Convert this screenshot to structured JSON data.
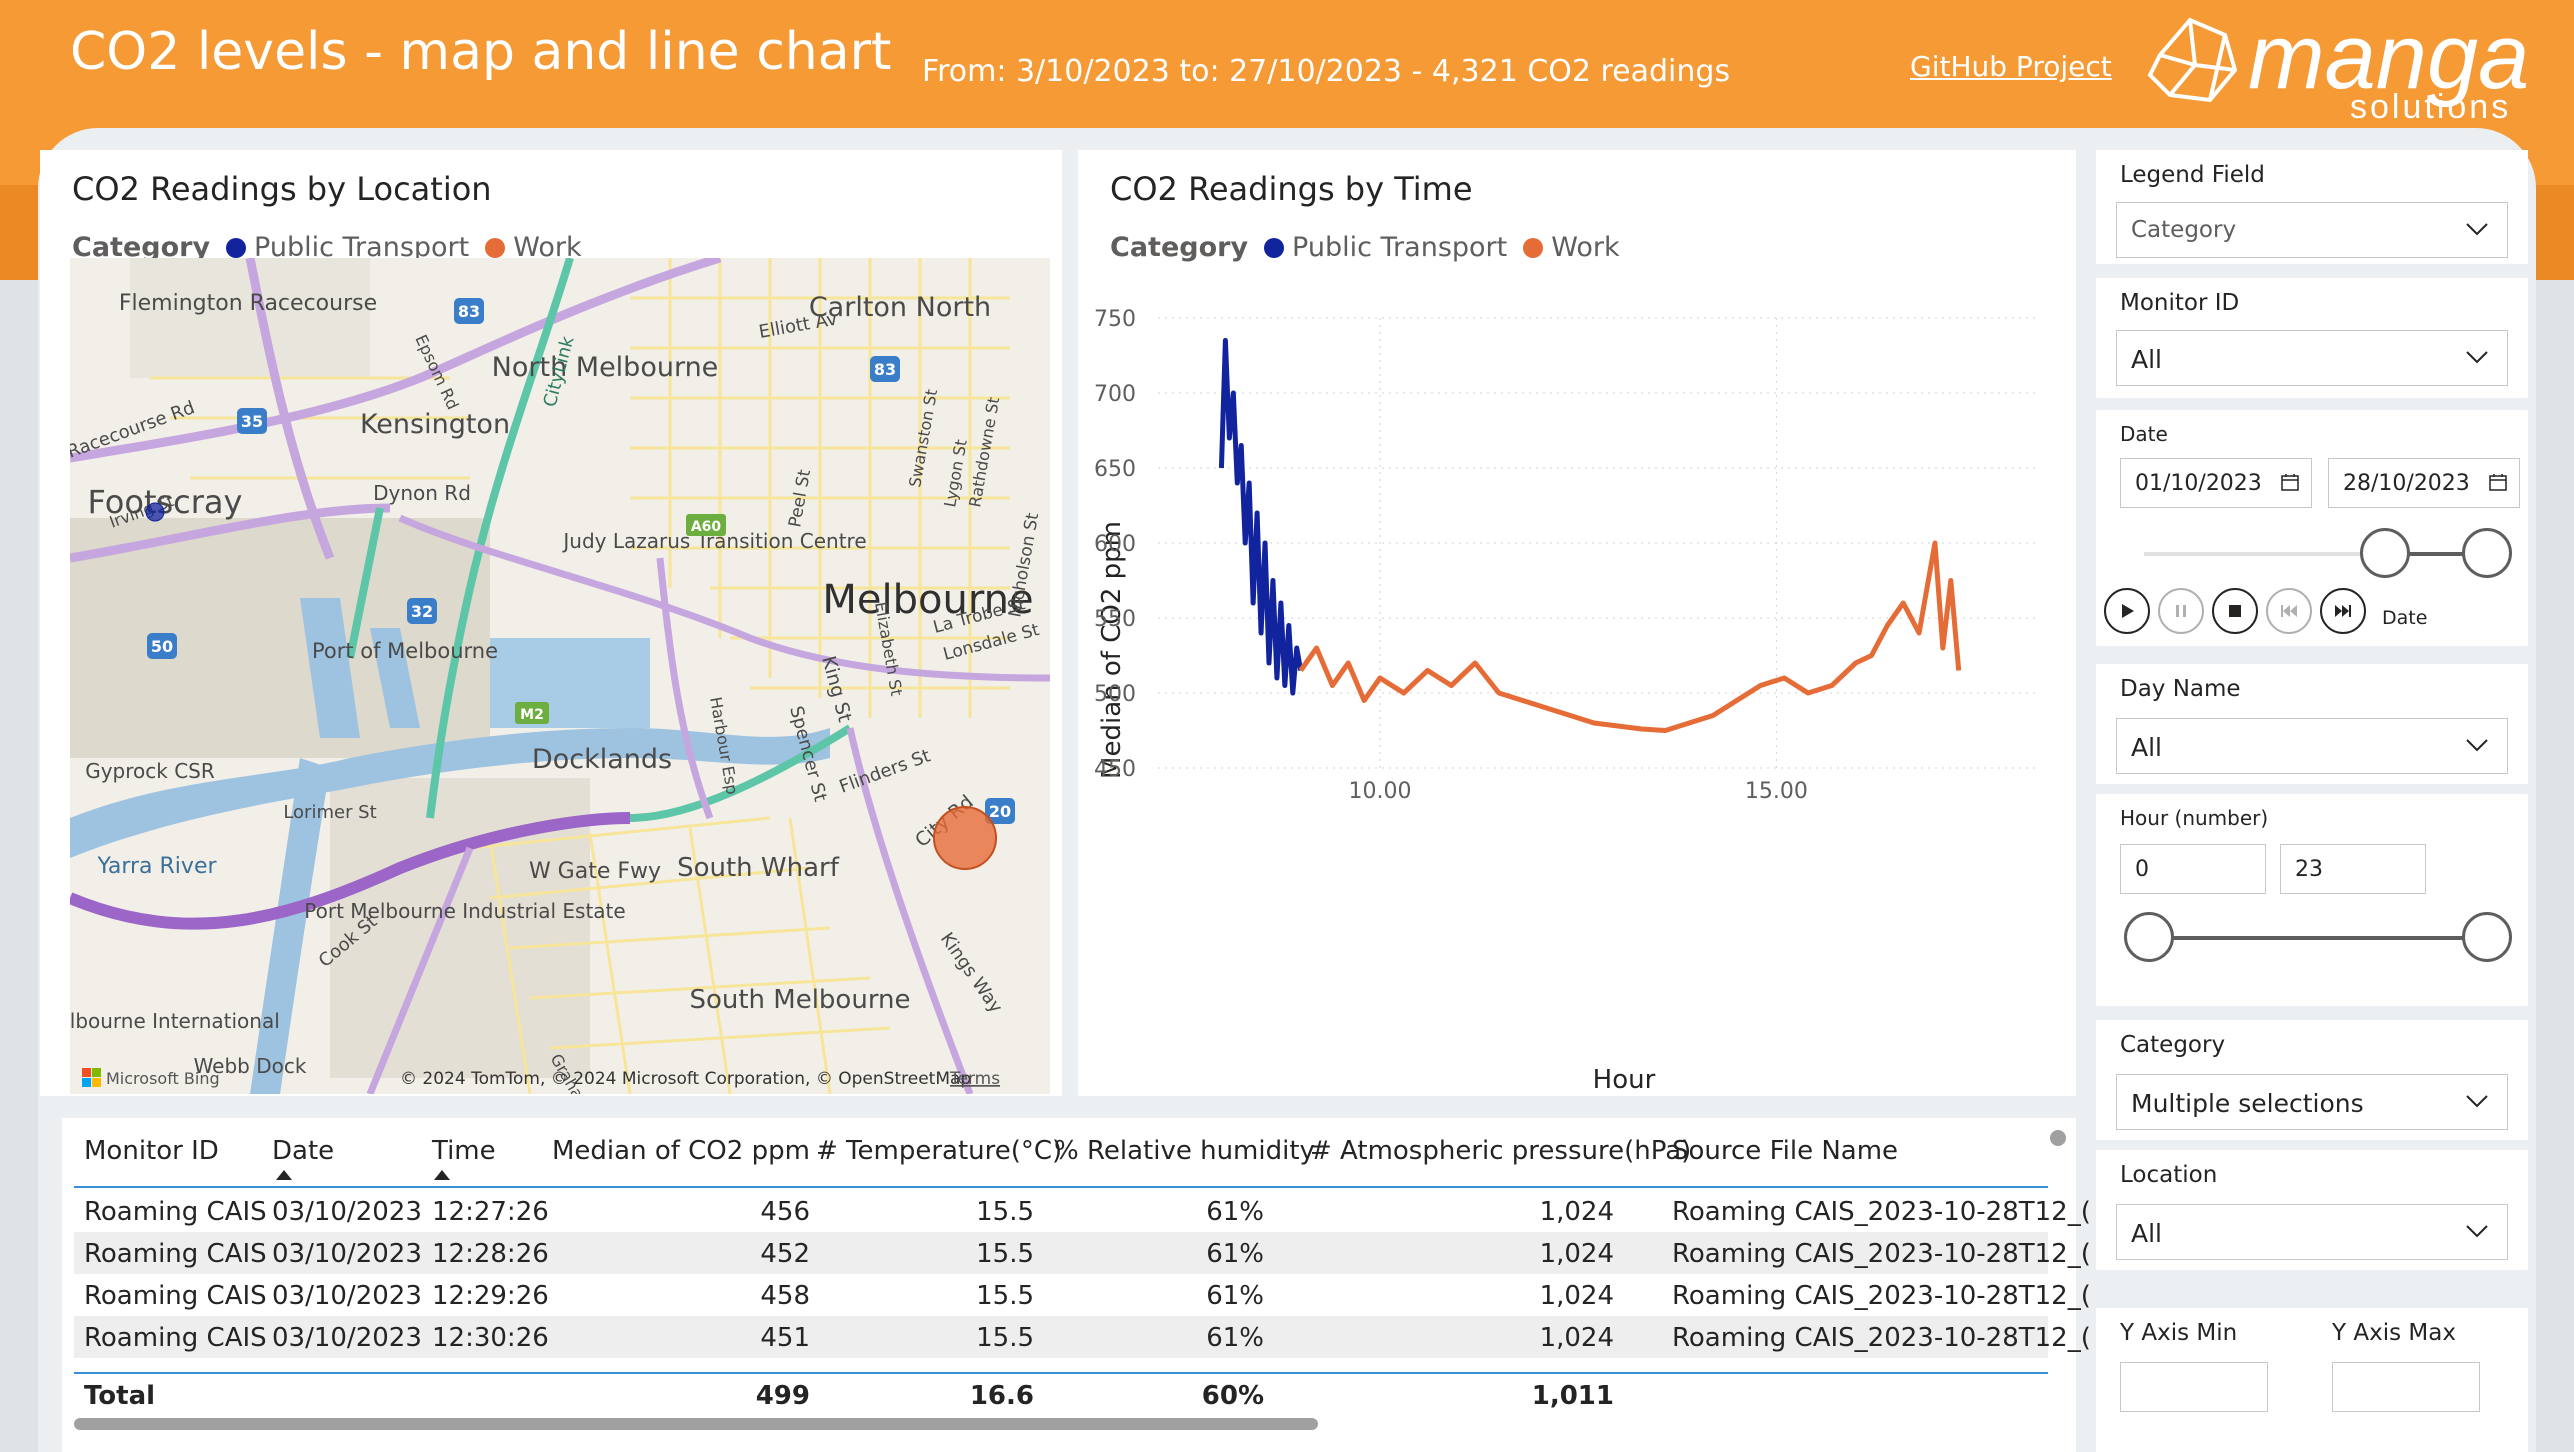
{
  "header": {
    "title": "CO2 levels - map and line chart",
    "subtitle": "From: 3/10/2023 to: 27/10/2023 - 4,321 CO2 readings",
    "github_link": "GitHub Project",
    "logo_text": "manga",
    "logo_subtext": "solutions"
  },
  "colors": {
    "public_transport": "#12239e",
    "work": "#e66c37",
    "header": "#f59a35"
  },
  "map": {
    "title": "CO2 Readings by Location",
    "legend_label": "Category",
    "legend_items": [
      "Public Transport",
      "Work"
    ],
    "labels": [
      "Flemington Racecourse",
      "Carlton North",
      "North Melbourne",
      "Kensington",
      "Footscray",
      "Dynon Rd",
      "Judy Lazarus Transition Centre",
      "Port of Melbourne",
      "Melbourne",
      "Docklands",
      "Gyprock CSR",
      "Yarra River",
      "Lorimer St",
      "W Gate Fwy",
      "South Wharf",
      "Port Melbourne Industrial Estate",
      "South Melbourne",
      "Melbourne International",
      "Webb Dock",
      "CityLink",
      "Elliott Av",
      "Flinders St",
      "City Rd",
      "Kings Way",
      "Cook St",
      "Harbour Esp",
      "Spencer St",
      "King St",
      "Elizabeth St",
      "Swanston St",
      "La Trobe St",
      "Lonsdale St",
      "Peel St",
      "Lygon St",
      "Rathdowne St",
      "Nicholson St",
      "Epsom Rd",
      "Racecourse Rd",
      "Irving St",
      "Graham St"
    ],
    "road_shields": [
      "83",
      "83",
      "35",
      "32",
      "50",
      "20",
      "A60",
      "M2"
    ],
    "attribution": "© 2024 TomTom, © 2024 Microsoft Corporation, © OpenStreetMap",
    "terms": "Terms",
    "bing": "Microsoft Bing"
  },
  "line": {
    "title": "CO2 Readings by Time",
    "legend_label": "Category",
    "legend_items": [
      "Public Transport",
      "Work"
    ],
    "xlabel": "Hour",
    "ylabel": "Median of CO2 ppm",
    "yticks": [
      "750",
      "700",
      "650",
      "600",
      "550",
      "500",
      "450"
    ],
    "xticks": [
      "10.00",
      "15.00"
    ]
  },
  "chart_data": {
    "type": "line",
    "title": "CO2 Readings by Time",
    "xlabel": "Hour",
    "ylabel": "Median of CO2 ppm",
    "xlim": [
      7.2,
      18.3
    ],
    "ylim": [
      450,
      750
    ],
    "series": [
      {
        "name": "Public Transport",
        "x": [
          8.0,
          8.05,
          8.1,
          8.15,
          8.2,
          8.25,
          8.3,
          8.35,
          8.4,
          8.45,
          8.5,
          8.55,
          8.6,
          8.65,
          8.7,
          8.75,
          8.8,
          8.85,
          8.9,
          8.95,
          9.0
        ],
        "y": [
          650,
          735,
          670,
          700,
          640,
          665,
          600,
          640,
          560,
          620,
          540,
          600,
          520,
          575,
          510,
          560,
          505,
          545,
          500,
          530,
          515
        ]
      },
      {
        "name": "Work",
        "x": [
          9.0,
          9.2,
          9.4,
          9.6,
          9.8,
          10.0,
          10.3,
          10.6,
          10.9,
          11.2,
          11.5,
          11.8,
          12.1,
          12.4,
          12.7,
          13.0,
          13.3,
          13.6,
          13.9,
          14.2,
          14.5,
          14.8,
          15.1,
          15.4,
          15.7,
          16.0,
          16.2,
          16.4,
          16.6,
          16.8,
          17.0,
          17.1,
          17.2,
          17.3
        ],
        "y": [
          515,
          530,
          505,
          520,
          495,
          510,
          500,
          515,
          505,
          520,
          500,
          495,
          490,
          485,
          480,
          478,
          476,
          475,
          480,
          485,
          495,
          505,
          510,
          500,
          505,
          520,
          525,
          545,
          560,
          540,
          600,
          530,
          575,
          515
        ]
      }
    ]
  },
  "table": {
    "columns": [
      "Monitor ID",
      "Date",
      "Time",
      "Median of CO2 ppm",
      "# Temperature(°C)",
      "% Relative humidity",
      "# Atmospheric pressure(hPa)",
      "Source File Name"
    ],
    "rows": [
      [
        "Roaming CAIS",
        "03/10/2023",
        "12:27:26",
        "456",
        "15.5",
        "61%",
        "1,024",
        "Roaming CAIS_2023-10-28T12_("
      ],
      [
        "Roaming CAIS",
        "03/10/2023",
        "12:28:26",
        "452",
        "15.5",
        "61%",
        "1,024",
        "Roaming CAIS_2023-10-28T12_("
      ],
      [
        "Roaming CAIS",
        "03/10/2023",
        "12:29:26",
        "458",
        "15.5",
        "61%",
        "1,024",
        "Roaming CAIS_2023-10-28T12_("
      ],
      [
        "Roaming CAIS",
        "03/10/2023",
        "12:30:26",
        "451",
        "15.5",
        "61%",
        "1,024",
        "Roaming CAIS_2023-10-28T12_("
      ]
    ],
    "total": {
      "label": "Total",
      "co2": "499",
      "temp": "16.6",
      "humidity": "60%",
      "pressure": "1,011"
    }
  },
  "slicers": {
    "legend_field": {
      "title": "Legend Field",
      "value": "Category"
    },
    "monitor_id": {
      "title": "Monitor ID",
      "value": "All"
    },
    "date": {
      "title": "Date",
      "from": "01/10/2023",
      "to": "28/10/2023",
      "play_label": "Date"
    },
    "day_name": {
      "title": "Day Name",
      "value": "All"
    },
    "hour": {
      "title": "Hour (number)",
      "min": "0",
      "max": "23"
    },
    "category": {
      "title": "Category",
      "value": "Multiple selections"
    },
    "location": {
      "title": "Location",
      "value": "All"
    },
    "y_axis": {
      "min_label": "Y Axis Min",
      "max_label": "Y Axis Max"
    }
  }
}
